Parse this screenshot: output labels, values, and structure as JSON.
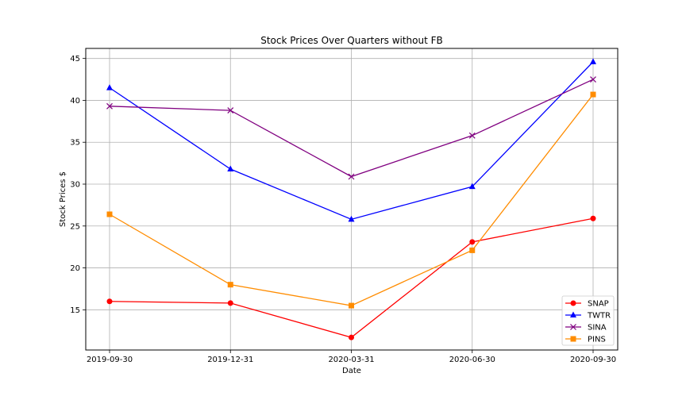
{
  "chart_data": {
    "type": "line",
    "title": "Stock Prices Over Quarters without FB",
    "xlabel": "Date",
    "ylabel": "Stock Prices $",
    "categories": [
      "2019-09-30",
      "2019-12-31",
      "2020-03-31",
      "2020-06-30",
      "2020-09-30"
    ],
    "ylim": [
      10.2,
      46.2
    ],
    "yticks": [
      15,
      20,
      25,
      30,
      35,
      40,
      45
    ],
    "grid": true,
    "legend_position": "bottom-right",
    "series": [
      {
        "name": "SNAP",
        "color": "#ff0000",
        "marker": "circle",
        "values": [
          16.0,
          15.8,
          11.7,
          23.1,
          25.9
        ]
      },
      {
        "name": "TWTR",
        "color": "#0000ff",
        "marker": "triangle",
        "values": [
          41.5,
          31.8,
          25.8,
          29.7,
          44.6
        ]
      },
      {
        "name": "SINA",
        "color": "#800080",
        "marker": "x",
        "values": [
          39.3,
          38.8,
          30.9,
          35.8,
          42.5
        ]
      },
      {
        "name": "PINS",
        "color": "#ff8c00",
        "marker": "square",
        "values": [
          26.4,
          18.0,
          15.5,
          22.1,
          40.7
        ]
      }
    ]
  }
}
